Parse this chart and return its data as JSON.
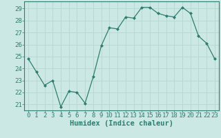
{
  "x": [
    0,
    1,
    2,
    3,
    4,
    5,
    6,
    7,
    8,
    9,
    10,
    11,
    12,
    13,
    14,
    15,
    16,
    17,
    18,
    19,
    20,
    21,
    22,
    23
  ],
  "y": [
    24.8,
    23.7,
    22.6,
    23.0,
    20.8,
    22.1,
    22.0,
    21.1,
    23.3,
    25.9,
    27.4,
    27.3,
    28.3,
    28.2,
    29.1,
    29.1,
    28.6,
    28.4,
    28.3,
    29.1,
    28.6,
    26.7,
    26.1,
    24.8
  ],
  "line_color": "#2e7d6e",
  "marker": "D",
  "marker_size": 2,
  "bg_color": "#cce8e4",
  "grid_color": "#b8d8d4",
  "axis_color": "#2e7d6e",
  "tick_color": "#2e7d6e",
  "xlabel": "Humidex (Indice chaleur)",
  "ylim": [
    20.5,
    29.6
  ],
  "yticks": [
    21,
    22,
    23,
    24,
    25,
    26,
    27,
    28,
    29
  ],
  "xlim": [
    -0.5,
    23.5
  ],
  "xlabel_fontsize": 7.5,
  "tick_fontsize": 6.5
}
